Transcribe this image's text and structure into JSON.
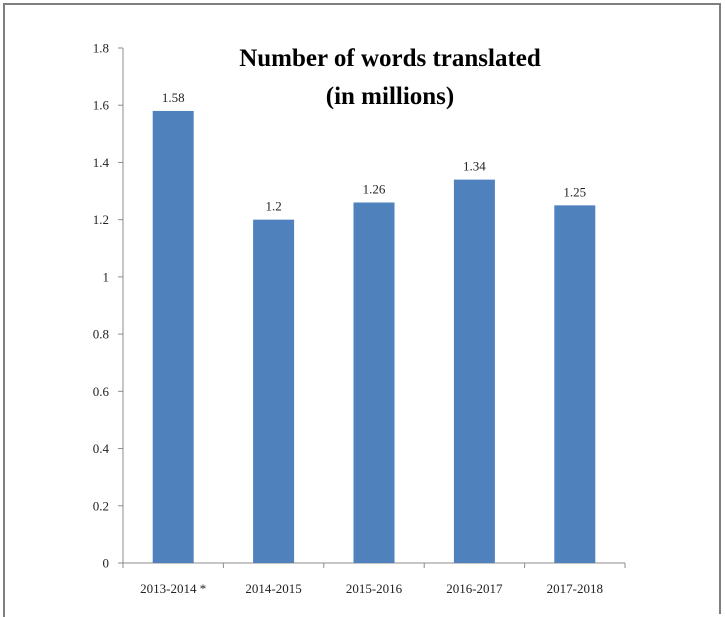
{
  "chart_data": {
    "type": "bar",
    "title_lines": [
      "Number of words translated",
      "(in millions)"
    ],
    "xlabel": "",
    "ylabel": "",
    "categories": [
      "2013-2014 *",
      "2014-2015",
      "2015-2016",
      "2016-2017",
      "2017-2018"
    ],
    "values": [
      1.58,
      1.2,
      1.26,
      1.34,
      1.25
    ],
    "data_labels": [
      "1.58",
      "1.2",
      "1.26",
      "1.34",
      "1.25"
    ],
    "ylim": [
      0,
      1.8
    ],
    "y_ticks": [
      0,
      0.2,
      0.4,
      0.6,
      0.8,
      1,
      1.2,
      1.4,
      1.6,
      1.8
    ],
    "y_tick_labels": [
      "0",
      "0.2",
      "0.4",
      "0.6",
      "0.8",
      "1",
      "1.2",
      "1.4",
      "1.6",
      "1.8"
    ],
    "grid": false,
    "legend": "none",
    "bar_color": "#4f81bd"
  }
}
